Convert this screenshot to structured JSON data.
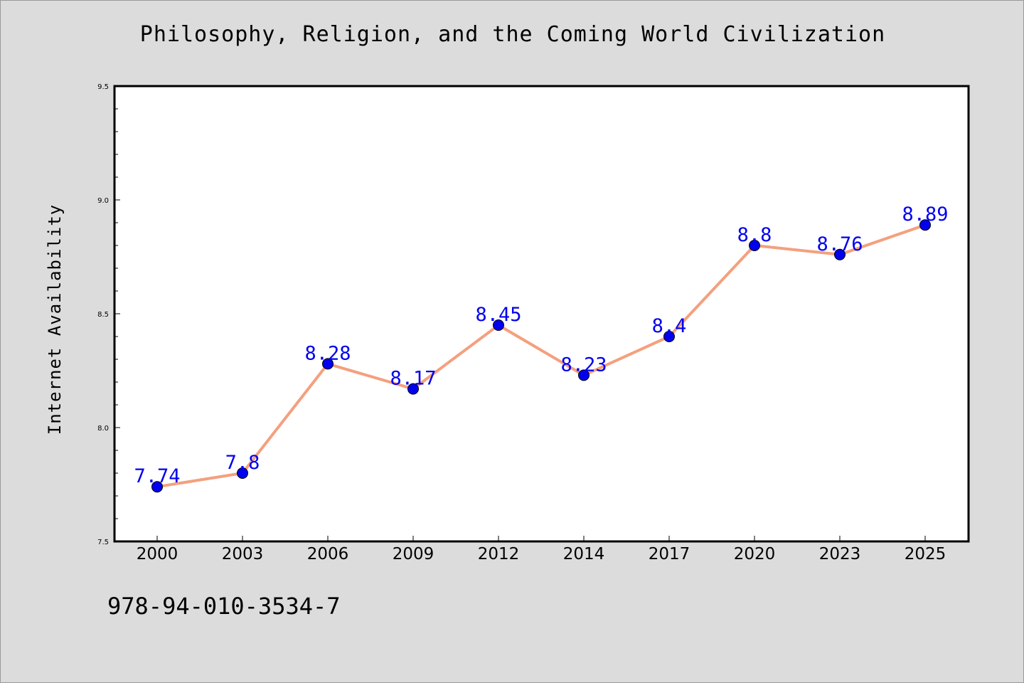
{
  "chart_data": {
    "type": "line",
    "title": "Philosophy, Religion, and the Coming World Civilization",
    "xlabel": "",
    "ylabel": "Internet Availability",
    "categories": [
      "2000",
      "2003",
      "2006",
      "2009",
      "2012",
      "2014",
      "2017",
      "2020",
      "2023",
      "2025"
    ],
    "series": [
      {
        "values": [
          7.74,
          7.8,
          8.28,
          8.17,
          8.45,
          8.23,
          8.4,
          8.8,
          8.76,
          8.89
        ],
        "labels": [
          "7.74",
          "7.8",
          "8.28",
          "8.17",
          "8.45",
          "8.23",
          "8.4",
          "8.8",
          "8.76",
          "8.89"
        ],
        "line_color": "#f4a07e",
        "marker_color": "#0000ee"
      }
    ],
    "ylim": [
      7.5,
      9.5
    ],
    "yticks": [
      "7.5",
      "8.0",
      "8.5",
      "9.0",
      "9.5"
    ],
    "grid": false,
    "legend": "none"
  },
  "footer": {
    "code": "978-94-010-3534-7"
  },
  "colors": {
    "background": "#dcdcdc",
    "plot_background": "#ffffff",
    "label_color": "#0000ee"
  }
}
